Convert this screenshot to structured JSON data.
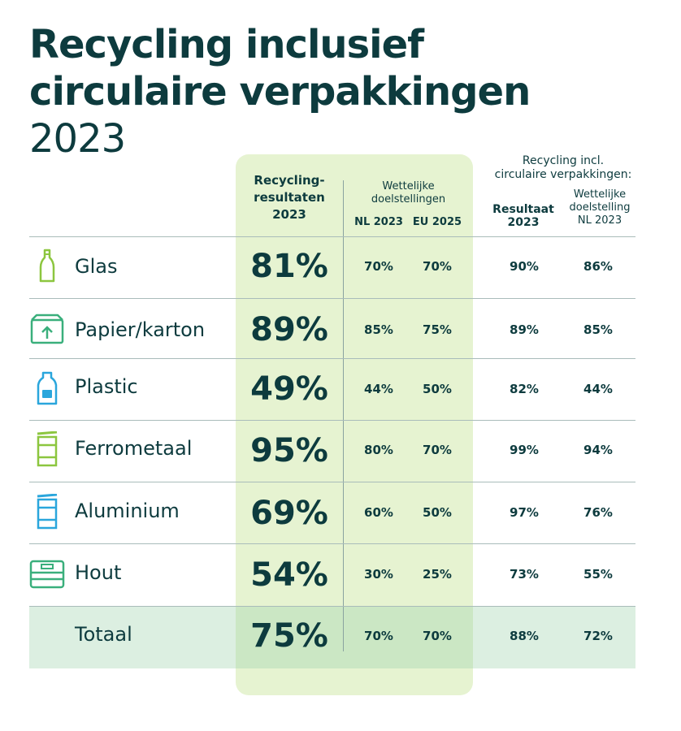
{
  "title": {
    "line1": "Recycling inclusief",
    "line2": "circulaire verpakkingen",
    "year": "2023"
  },
  "headers": {
    "result_line1": "Recycling-",
    "result_line2": "resultaten",
    "result_line3": "2023",
    "targets_line1": "Wettelijke",
    "targets_line2": "doelstellingen",
    "nl2023": "NL 2023",
    "eu2025": "EU 2025",
    "circ_line1": "Recycling incl.",
    "circ_line2": "circulaire verpakkingen:",
    "circ_result_line1": "Resultaat",
    "circ_result_line2": "2023",
    "circ_target_line1": "Wettelijke",
    "circ_target_line2": "doelstelling",
    "circ_target_line3": "NL 2023"
  },
  "colors": {
    "dark": "#0d3b3e",
    "green": "#8cc63f",
    "teal": "#3aaf7c",
    "blue": "#2aa6dc",
    "highlight": "#e6f3d1",
    "total_band": "#dcefe1"
  },
  "chart_data": {
    "type": "table",
    "columns": [
      "Recycling-resultaten 2023",
      "NL 2023",
      "EU 2025",
      "Resultaat 2023",
      "Wettelijke doelstelling NL 2023"
    ],
    "rows": [
      {
        "label": "Glas",
        "icon": "bottle-icon",
        "result": "81%",
        "nl2023": "70%",
        "eu2025": "70%",
        "circ_result": "90%",
        "circ_target": "86%"
      },
      {
        "label": "Papier/karton",
        "icon": "cardboard-box-icon",
        "result": "89%",
        "nl2023": "85%",
        "eu2025": "75%",
        "circ_result": "89%",
        "circ_target": "85%"
      },
      {
        "label": "Plastic",
        "icon": "plastic-bottle-icon",
        "result": "49%",
        "nl2023": "44%",
        "eu2025": "50%",
        "circ_result": "82%",
        "circ_target": "44%"
      },
      {
        "label": "Ferrometaal",
        "icon": "tin-can-icon",
        "result": "95%",
        "nl2023": "80%",
        "eu2025": "70%",
        "circ_result": "99%",
        "circ_target": "94%"
      },
      {
        "label": "Aluminium",
        "icon": "aluminium-can-icon",
        "result": "69%",
        "nl2023": "60%",
        "eu2025": "50%",
        "circ_result": "97%",
        "circ_target": "76%"
      },
      {
        "label": "Hout",
        "icon": "wooden-crate-icon",
        "result": "54%",
        "nl2023": "30%",
        "eu2025": "25%",
        "circ_result": "73%",
        "circ_target": "55%"
      },
      {
        "label": "Totaal",
        "icon": "",
        "result": "75%",
        "nl2023": "70%",
        "eu2025": "70%",
        "circ_result": "88%",
        "circ_target": "72%"
      }
    ]
  }
}
